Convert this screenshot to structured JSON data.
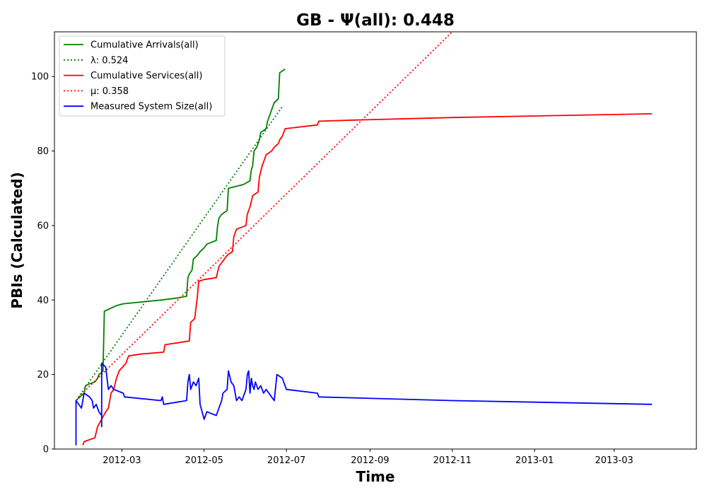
{
  "chart_data": {
    "type": "line",
    "title": "GB -  Ψ(all): 0.448",
    "xlabel": "Time",
    "ylabel": "PBIs (Calculated)",
    "xlim": [
      "2012-01-11",
      "2013-05-01"
    ],
    "ylim": [
      0,
      112
    ],
    "x_ticks": [
      "2012-03",
      "2012-05",
      "2012-07",
      "2012-09",
      "2012-11",
      "2013-01",
      "2013-03"
    ],
    "x_tick_dates": [
      "2012-03-01",
      "2012-05-01",
      "2012-07-01",
      "2012-09-01",
      "2012-11-01",
      "2013-01-01",
      "2013-03-01"
    ],
    "y_ticks": [
      0,
      20,
      40,
      60,
      80,
      100
    ],
    "grid": false,
    "legend_position": "top-left",
    "series": [
      {
        "name": "Cumulative Arrivals(all)",
        "color": "#008000",
        "style": "solid",
        "points": [
          [
            "2012-01-27",
            13
          ],
          [
            "2012-02-02",
            15
          ],
          [
            "2012-02-03",
            17
          ],
          [
            "2012-02-06",
            17.5
          ],
          [
            "2012-02-10",
            18
          ],
          [
            "2012-02-12",
            19
          ],
          [
            "2012-02-13",
            20
          ],
          [
            "2012-02-15",
            20.5
          ],
          [
            "2012-02-16",
            21
          ],
          [
            "2012-02-17",
            37
          ],
          [
            "2012-02-20",
            37.5
          ],
          [
            "2012-02-26",
            38.5
          ],
          [
            "2012-03-02",
            39
          ],
          [
            "2012-03-30",
            40
          ],
          [
            "2012-04-10",
            40.5
          ],
          [
            "2012-04-18",
            41
          ],
          [
            "2012-04-19",
            46
          ],
          [
            "2012-04-20",
            47
          ],
          [
            "2012-04-22",
            48
          ],
          [
            "2012-04-23",
            51
          ],
          [
            "2012-04-26",
            52
          ],
          [
            "2012-04-28",
            53
          ],
          [
            "2012-05-01",
            54
          ],
          [
            "2012-05-03",
            55
          ],
          [
            "2012-05-10",
            56
          ],
          [
            "2012-05-11",
            60
          ],
          [
            "2012-05-12",
            62
          ],
          [
            "2012-05-14",
            63
          ],
          [
            "2012-05-18",
            64
          ],
          [
            "2012-05-19",
            70
          ],
          [
            "2012-05-30",
            71
          ],
          [
            "2012-06-04",
            72
          ],
          [
            "2012-06-05",
            75
          ],
          [
            "2012-06-06",
            76
          ],
          [
            "2012-06-07",
            80
          ],
          [
            "2012-06-09",
            81
          ],
          [
            "2012-06-10",
            82
          ],
          [
            "2012-06-11",
            83
          ],
          [
            "2012-06-12",
            85
          ],
          [
            "2012-06-16",
            86
          ],
          [
            "2012-06-17",
            88
          ],
          [
            "2012-06-19",
            90
          ],
          [
            "2012-06-22",
            93
          ],
          [
            "2012-06-25",
            94
          ],
          [
            "2012-06-26",
            101
          ],
          [
            "2012-06-30",
            102
          ]
        ]
      },
      {
        "name": "λ: 0.524",
        "color": "#008000",
        "style": "dotted",
        "points": [
          [
            "2012-01-27",
            13
          ],
          [
            "2012-06-28",
            92
          ]
        ]
      },
      {
        "name": "Cumulative Services(all)",
        "color": "#ff0000",
        "style": "solid",
        "points": [
          [
            "2012-02-01",
            1
          ],
          [
            "2012-02-02",
            2
          ],
          [
            "2012-02-10",
            3
          ],
          [
            "2012-02-12",
            6
          ],
          [
            "2012-02-15",
            8
          ],
          [
            "2012-02-18",
            10
          ],
          [
            "2012-02-20",
            11
          ],
          [
            "2012-02-22",
            15
          ],
          [
            "2012-02-24",
            16
          ],
          [
            "2012-02-26",
            19
          ],
          [
            "2012-02-28",
            21
          ],
          [
            "2012-03-04",
            23
          ],
          [
            "2012-03-06",
            25
          ],
          [
            "2012-03-15",
            25.5
          ],
          [
            "2012-04-01",
            26
          ],
          [
            "2012-04-02",
            28
          ],
          [
            "2012-04-20",
            29
          ],
          [
            "2012-04-21",
            34
          ],
          [
            "2012-04-24",
            35
          ],
          [
            "2012-04-26",
            41
          ],
          [
            "2012-04-27",
            45
          ],
          [
            "2012-05-01",
            45.5
          ],
          [
            "2012-05-10",
            46
          ],
          [
            "2012-05-12",
            49
          ],
          [
            "2012-05-14",
            50
          ],
          [
            "2012-05-18",
            52
          ],
          [
            "2012-05-22",
            53
          ],
          [
            "2012-05-23",
            57
          ],
          [
            "2012-05-25",
            59
          ],
          [
            "2012-06-01",
            60
          ],
          [
            "2012-06-02",
            63
          ],
          [
            "2012-06-04",
            65
          ],
          [
            "2012-06-06",
            68
          ],
          [
            "2012-06-10",
            69
          ],
          [
            "2012-06-11",
            73
          ],
          [
            "2012-06-13",
            76
          ],
          [
            "2012-06-16",
            79
          ],
          [
            "2012-06-20",
            80
          ],
          [
            "2012-06-22",
            81
          ],
          [
            "2012-06-25",
            82
          ],
          [
            "2012-06-26",
            83
          ],
          [
            "2012-06-28",
            84
          ],
          [
            "2012-06-30",
            86
          ],
          [
            "2012-07-24",
            87
          ],
          [
            "2012-07-25",
            88
          ],
          [
            "2012-08-20",
            88.3
          ],
          [
            "2012-11-01",
            89
          ],
          [
            "2013-03-29",
            90
          ]
        ]
      },
      {
        "name": "μ: 0.358",
        "color": "#ff0000",
        "style": "dotted",
        "points": [
          [
            "2012-01-29",
            14
          ],
          [
            "2012-11-01",
            112
          ]
        ]
      },
      {
        "name": "Measured System Size(all)",
        "color": "#0000ff",
        "style": "solid",
        "points": [
          [
            "2012-01-27",
            1
          ],
          [
            "2012-01-27",
            13
          ],
          [
            "2012-01-31",
            11
          ],
          [
            "2012-02-02",
            15
          ],
          [
            "2012-02-06",
            14
          ],
          [
            "2012-02-08",
            13
          ],
          [
            "2012-02-09",
            11
          ],
          [
            "2012-02-11",
            12
          ],
          [
            "2012-02-13",
            10
          ],
          [
            "2012-02-15",
            9
          ],
          [
            "2012-02-15",
            6
          ],
          [
            "2012-02-15",
            23
          ],
          [
            "2012-02-18",
            22
          ],
          [
            "2012-02-20",
            16
          ],
          [
            "2012-02-22",
            17
          ],
          [
            "2012-02-24",
            16
          ],
          [
            "2012-03-02",
            15
          ],
          [
            "2012-03-03",
            14
          ],
          [
            "2012-03-30",
            13
          ],
          [
            "2012-03-31",
            14
          ],
          [
            "2012-04-01",
            12
          ],
          [
            "2012-04-18",
            13
          ],
          [
            "2012-04-19",
            18
          ],
          [
            "2012-04-20",
            20
          ],
          [
            "2012-04-21",
            16
          ],
          [
            "2012-04-23",
            18
          ],
          [
            "2012-04-25",
            17
          ],
          [
            "2012-04-27",
            19
          ],
          [
            "2012-04-28",
            12
          ],
          [
            "2012-05-01",
            8
          ],
          [
            "2012-05-03",
            10
          ],
          [
            "2012-05-10",
            9
          ],
          [
            "2012-05-12",
            11
          ],
          [
            "2012-05-14",
            13
          ],
          [
            "2012-05-15",
            15
          ],
          [
            "2012-05-18",
            16
          ],
          [
            "2012-05-19",
            21
          ],
          [
            "2012-05-21",
            18
          ],
          [
            "2012-05-23",
            17
          ],
          [
            "2012-05-25",
            13
          ],
          [
            "2012-05-27",
            14
          ],
          [
            "2012-05-29",
            13
          ],
          [
            "2012-06-01",
            16
          ],
          [
            "2012-06-02",
            20
          ],
          [
            "2012-06-03",
            21
          ],
          [
            "2012-06-04",
            15
          ],
          [
            "2012-06-05",
            19
          ],
          [
            "2012-06-06",
            17
          ],
          [
            "2012-06-07",
            16
          ],
          [
            "2012-06-08",
            18
          ],
          [
            "2012-06-10",
            16
          ],
          [
            "2012-06-12",
            17
          ],
          [
            "2012-06-14",
            15
          ],
          [
            "2012-06-16",
            16
          ],
          [
            "2012-06-20",
            14
          ],
          [
            "2012-06-22",
            13
          ],
          [
            "2012-06-24",
            20
          ],
          [
            "2012-06-28",
            19
          ],
          [
            "2012-06-30",
            17
          ],
          [
            "2012-07-01",
            16
          ],
          [
            "2012-07-24",
            15
          ],
          [
            "2012-07-25",
            14
          ],
          [
            "2012-11-01",
            13
          ],
          [
            "2013-03-29",
            12
          ]
        ]
      }
    ]
  }
}
